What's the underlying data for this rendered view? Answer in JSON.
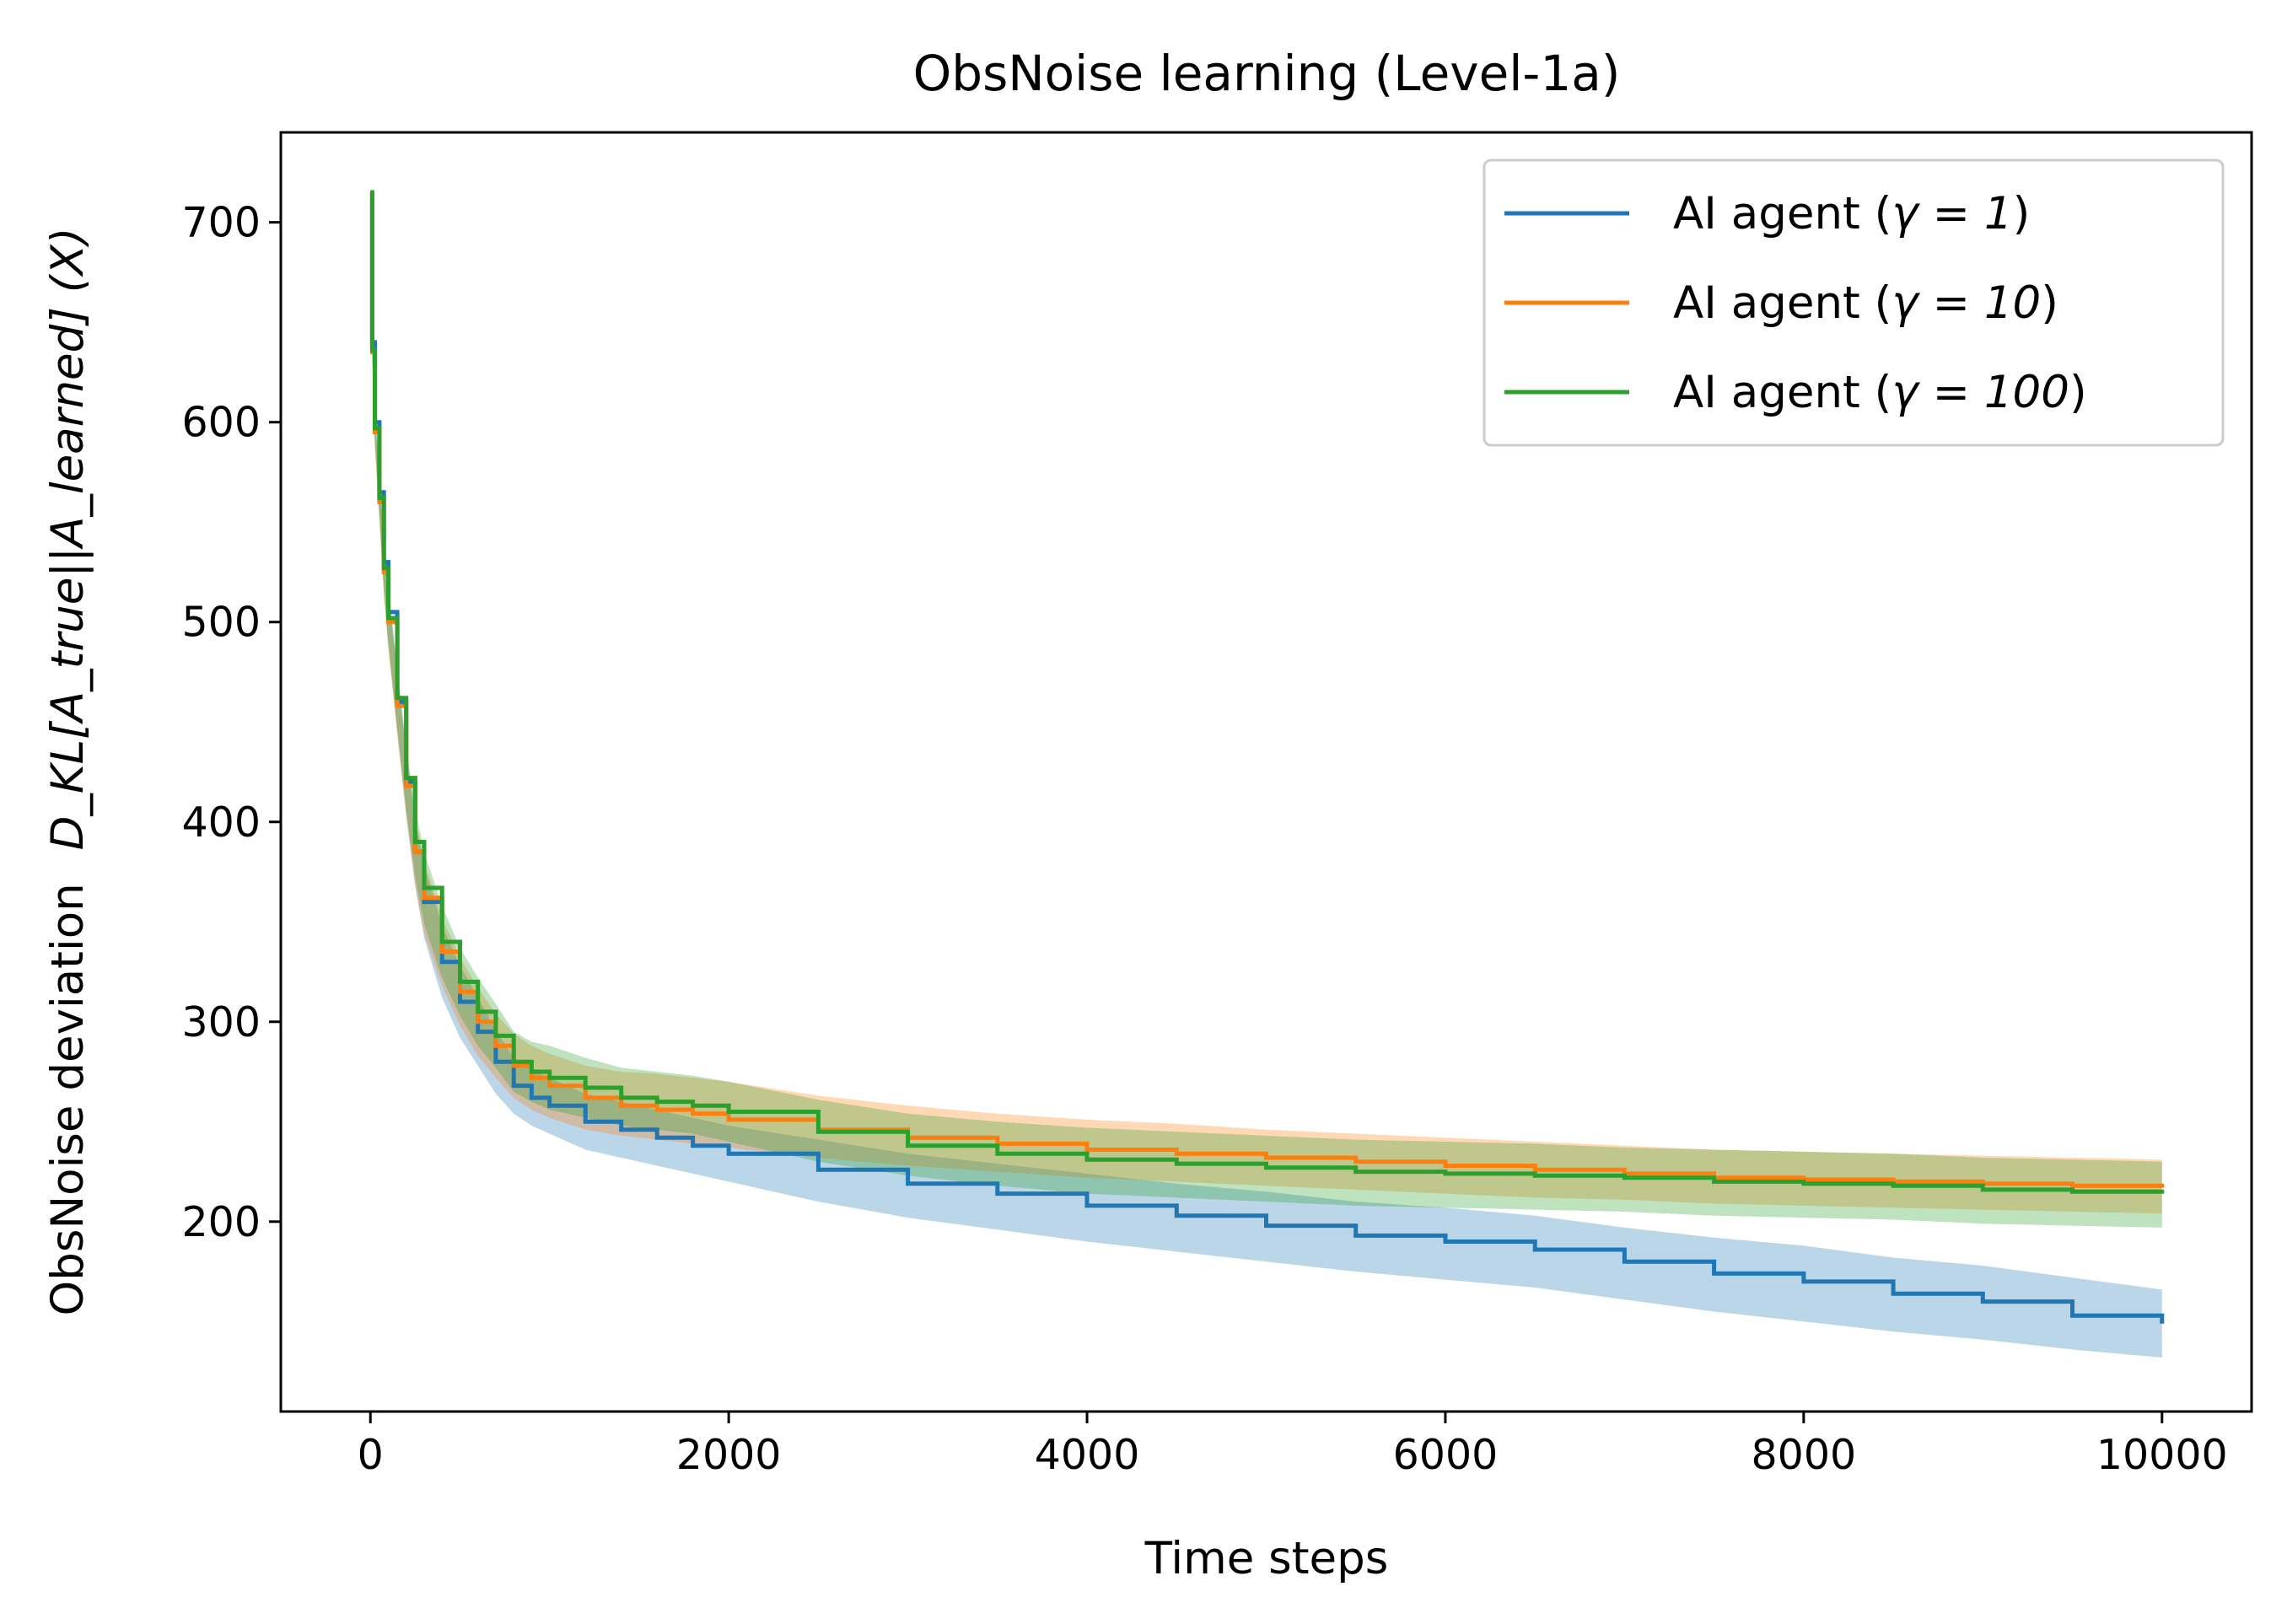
{
  "chart_data": {
    "type": "line",
    "title": "ObsNoise learning (Level-1a)",
    "xlabel": "Time steps",
    "ylabel_prefix": "ObsNoise deviation",
    "ylabel_math": "D_KL[A_true||A_learned] (X)",
    "xlim": [
      -500,
      10500
    ],
    "ylim": [
      105,
      745
    ],
    "xticks": [
      0,
      2000,
      4000,
      6000,
      8000,
      10000
    ],
    "yticks": [
      200,
      300,
      400,
      500,
      600,
      700
    ],
    "grid": false,
    "legend_position": "top-right",
    "x": [
      0,
      10,
      25,
      50,
      75,
      100,
      150,
      200,
      250,
      300,
      400,
      500,
      600,
      700,
      800,
      900,
      1000,
      1200,
      1400,
      1600,
      1800,
      2000,
      2500,
      3000,
      3500,
      4000,
      4500,
      5000,
      5500,
      6000,
      6500,
      7000,
      7500,
      8000,
      8500,
      9000,
      9500,
      10000
    ],
    "series": [
      {
        "name": "AI agent (γ = 1)",
        "legend_prefix": "AI agent (",
        "legend_math": "γ = 1",
        "legend_suffix": ")",
        "color": "#1f77b4",
        "values": [
          715,
          640,
          600,
          565,
          530,
          505,
          460,
          420,
          385,
          360,
          330,
          310,
          295,
          280,
          268,
          262,
          258,
          250,
          246,
          242,
          238,
          234,
          226,
          219,
          214,
          208,
          203,
          198,
          193,
          190,
          186,
          180,
          174,
          170,
          164,
          160,
          153,
          149
        ],
        "lower": [
          715,
          635,
          592,
          555,
          518,
          490,
          445,
          404,
          368,
          342,
          312,
          292,
          278,
          264,
          254,
          248,
          244,
          236,
          232,
          228,
          224,
          220,
          210,
          202,
          196,
          190,
          185,
          180,
          175,
          171,
          167,
          161,
          155,
          150,
          145,
          141,
          136,
          132
        ],
        "upper": [
          715,
          645,
          608,
          575,
          542,
          518,
          475,
          436,
          402,
          378,
          348,
          328,
          312,
          296,
          282,
          276,
          272,
          264,
          260,
          256,
          252,
          248,
          241,
          234,
          229,
          224,
          219,
          215,
          210,
          207,
          203,
          197,
          192,
          188,
          182,
          178,
          172,
          166
        ]
      },
      {
        "name": "AI agent (γ = 10)",
        "legend_prefix": "AI agent (",
        "legend_math": "γ = 10",
        "legend_suffix": ")",
        "color": "#ff7f0e",
        "values": [
          715,
          635,
          595,
          560,
          525,
          500,
          458,
          418,
          385,
          362,
          335,
          315,
          300,
          288,
          278,
          272,
          268,
          262,
          258,
          256,
          254,
          251,
          246,
          242,
          239,
          236,
          234,
          232,
          230,
          228,
          226,
          224,
          222,
          221,
          220,
          219,
          218,
          217
        ],
        "lower": [
          715,
          630,
          587,
          550,
          513,
          486,
          443,
          402,
          368,
          344,
          318,
          298,
          283,
          272,
          262,
          256,
          252,
          246,
          243,
          241,
          239,
          237,
          232,
          228,
          225,
          222,
          220,
          218,
          216,
          214,
          212,
          211,
          209,
          208,
          207,
          206,
          205,
          204
        ],
        "upper": [
          715,
          640,
          603,
          570,
          537,
          514,
          473,
          434,
          402,
          380,
          352,
          332,
          317,
          304,
          294,
          288,
          284,
          278,
          275,
          274,
          272,
          270,
          263,
          258,
          254,
          251,
          249,
          246,
          244,
          242,
          240,
          238,
          236,
          235,
          234,
          233,
          232,
          231
        ]
      },
      {
        "name": "AI agent (γ = 100)",
        "legend_prefix": "AI agent (",
        "legend_math": "γ = 100",
        "legend_suffix": ")",
        "color": "#2ca02c",
        "values": [
          715,
          636,
          597,
          562,
          527,
          502,
          462,
          422,
          390,
          367,
          340,
          320,
          305,
          293,
          280,
          275,
          272,
          267,
          262,
          260,
          258,
          255,
          245,
          238,
          234,
          231,
          229,
          227,
          225,
          224,
          223,
          222,
          220,
          219,
          218,
          216,
          215,
          214
        ],
        "lower": [
          715,
          631,
          589,
          552,
          515,
          488,
          447,
          406,
          373,
          349,
          322,
          303,
          288,
          277,
          265,
          260,
          256,
          252,
          248,
          246,
          244,
          240,
          230,
          223,
          218,
          214,
          212,
          210,
          208,
          207,
          206,
          205,
          203,
          202,
          201,
          199,
          198,
          197
        ],
        "upper": [
          715,
          641,
          605,
          572,
          539,
          516,
          477,
          438,
          407,
          385,
          358,
          337,
          322,
          309,
          295,
          290,
          288,
          282,
          277,
          275,
          273,
          270,
          261,
          254,
          250,
          247,
          245,
          243,
          241,
          240,
          239,
          237,
          236,
          235,
          234,
          232,
          231,
          230
        ]
      }
    ]
  }
}
